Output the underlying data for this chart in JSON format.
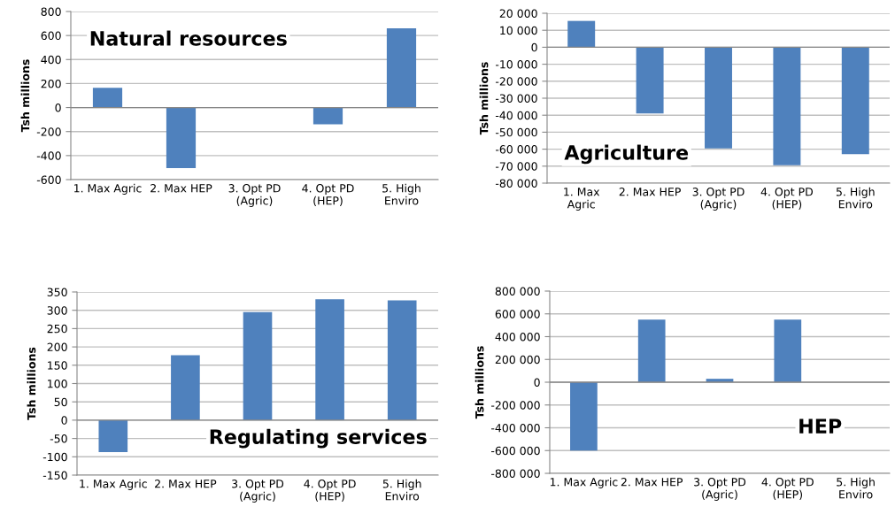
{
  "chart_data": [
    {
      "type": "bar",
      "title": "Natural resources",
      "ylabel": "Tsh millions",
      "categories": [
        "1. Max Agric",
        "2. Max HEP",
        "3. Opt PD\n(Agric)",
        "4. Opt PD\n(HEP)",
        "5. High\nEnviro"
      ],
      "values": [
        165,
        -505,
        2,
        -140,
        660
      ],
      "color": "#4f81bd",
      "ylim": [
        -600,
        800
      ],
      "yticks": [
        {
          "value": -600,
          "label": "-600"
        },
        {
          "value": -400,
          "label": "-400"
        },
        {
          "value": -200,
          "label": "-200"
        },
        0,
        200,
        400,
        600,
        800
      ],
      "grid": "y"
    },
    {
      "type": "bar",
      "title": "Agriculture",
      "ylabel": "Tsh millions",
      "categories": [
        "1. Max\nAgric",
        "2. Max HEP",
        "3. Opt PD\n(Agric)",
        "4. Opt PD\n(HEP)",
        "5. High\nEnviro"
      ],
      "values": [
        15500,
        -39000,
        -59500,
        -69500,
        -63000
      ],
      "color": "#4f81bd",
      "ylim": [
        -80000,
        20000
      ],
      "yticks": [
        {
          "value": -80000,
          "label": "-80 000"
        },
        {
          "value": -70000,
          "label": "-70 000"
        },
        {
          "value": -60000,
          "label": "-60 000"
        },
        {
          "value": -50000,
          "label": "-50 000"
        },
        {
          "value": -40000,
          "label": "-40 000"
        },
        {
          "value": -30000,
          "label": "-30 000"
        },
        {
          "value": -20000,
          "label": "-20 000"
        },
        {
          "value": -10000,
          "label": "-10 000"
        },
        0,
        {
          "value": 10000,
          "label": "10 000"
        },
        {
          "value": 20000,
          "label": "20 000"
        }
      ],
      "grid": "y"
    },
    {
      "type": "bar",
      "title": "Regulating services",
      "ylabel": "Tsh millions",
      "categories": [
        "1. Max Agric",
        "2. Max HEP",
        "3. Opt PD\n(Agric)",
        "4. Opt PD\n(HEP)",
        "5. High\nEnviro"
      ],
      "values": [
        -87,
        177,
        295,
        330,
        327
      ],
      "color": "#4f81bd",
      "ylim": [
        -150,
        350
      ],
      "yticks": [
        {
          "value": -150,
          "label": "-150"
        },
        {
          "value": -100,
          "label": "-100"
        },
        {
          "value": -50,
          "label": "-50"
        },
        0,
        50,
        100,
        150,
        200,
        250,
        300,
        350
      ],
      "grid": "y"
    },
    {
      "type": "bar",
      "title": "HEP",
      "ylabel": "Tsh millions",
      "categories": [
        "1. Max Agric",
        "2. Max HEP",
        "3. Opt PD\n(Agric)",
        "4. Opt PD\n(HEP)",
        "5. High\nEnviro"
      ],
      "values": [
        -600000,
        550000,
        30000,
        550000,
        null
      ],
      "color": "#4f81bd",
      "ylim": [
        -800000,
        800000
      ],
      "yticks": [
        {
          "value": -800000,
          "label": "-800 000"
        },
        {
          "value": -600000,
          "label": "-600 000"
        },
        {
          "value": -400000,
          "label": "-400 000"
        },
        {
          "value": -200000,
          "label": "-200 000"
        },
        0,
        {
          "value": 200000,
          "label": "200 000"
        },
        {
          "value": 400000,
          "label": "400 000"
        },
        {
          "value": 600000,
          "label": "600 000"
        },
        {
          "value": 800000,
          "label": "800 000"
        }
      ],
      "grid": "y"
    }
  ]
}
